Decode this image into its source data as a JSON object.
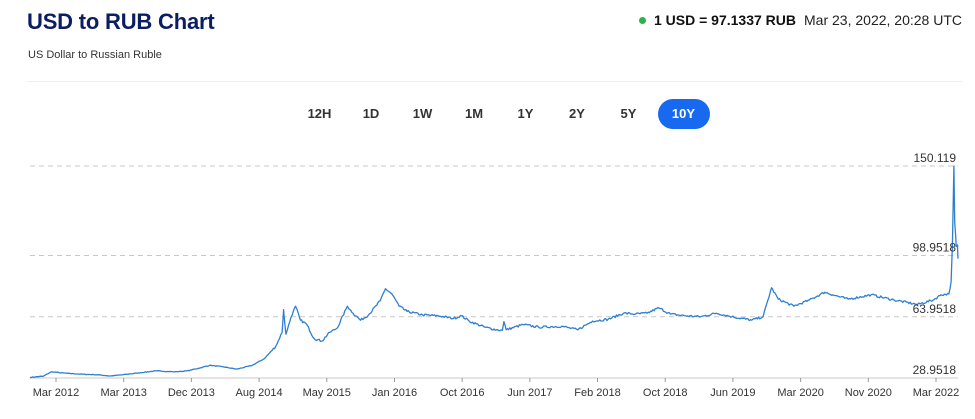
{
  "header": {
    "title": "USD to RUB Chart",
    "subtitle": "US Dollar to Russian Ruble",
    "rate": "1 USD = 97.1337 RUB",
    "timestamp": "Mar 23, 2022, 20:28 UTC",
    "status_color": "#2db24a"
  },
  "tabs": [
    {
      "label": "12H",
      "active": false
    },
    {
      "label": "1D",
      "active": false
    },
    {
      "label": "1W",
      "active": false
    },
    {
      "label": "1M",
      "active": false
    },
    {
      "label": "1Y",
      "active": false
    },
    {
      "label": "2Y",
      "active": false
    },
    {
      "label": "5Y",
      "active": false
    },
    {
      "label": "10Y",
      "active": true
    }
  ],
  "chart_data": {
    "type": "line",
    "title": "",
    "xlabel": "",
    "ylabel": "",
    "color": "#2f7fd1",
    "grid": "dashed horizontal",
    "ylim": [
      28.9518,
      150.119
    ],
    "y_ticks": [
      "150.119",
      "98.9518",
      "63.9518",
      "28.9518"
    ],
    "x_ticks": [
      "Mar 2012",
      "Mar 2013",
      "Dec 2013",
      "Aug 2014",
      "May 2015",
      "Jan 2016",
      "Oct 2016",
      "Jun 2017",
      "Feb 2018",
      "Oct 2018",
      "Jun 2019",
      "Mar 2020",
      "Nov 2020",
      "Mar 2022"
    ],
    "series": [
      {
        "values": [
          [
            "2012-03-23",
            29.3
          ],
          [
            "2012-05-15",
            30.0
          ],
          [
            "2012-06-15",
            32.5
          ],
          [
            "2012-08-01",
            31.8
          ],
          [
            "2012-10-01",
            31.2
          ],
          [
            "2012-12-15",
            30.8
          ],
          [
            "2013-02-01",
            30.1
          ],
          [
            "2013-03-23",
            30.8
          ],
          [
            "2013-06-01",
            32.0
          ],
          [
            "2013-08-01",
            33.0
          ],
          [
            "2013-10-15",
            32.5
          ],
          [
            "2013-12-01",
            33.0
          ],
          [
            "2014-01-15",
            34.5
          ],
          [
            "2014-03-01",
            36.2
          ],
          [
            "2014-04-15",
            35.5
          ],
          [
            "2014-06-15",
            34.0
          ],
          [
            "2014-08-15",
            36.2
          ],
          [
            "2014-10-01",
            40.0
          ],
          [
            "2014-11-15",
            47.0
          ],
          [
            "2014-12-10",
            55.0
          ],
          [
            "2014-12-16",
            68.0
          ],
          [
            "2014-12-25",
            54.0
          ],
          [
            "2015-01-15",
            64.0
          ],
          [
            "2015-02-01",
            70.0
          ],
          [
            "2015-02-20",
            62.0
          ],
          [
            "2015-03-15",
            60.0
          ],
          [
            "2015-04-15",
            51.5
          ],
          [
            "2015-05-15",
            50.0
          ],
          [
            "2015-06-15",
            55.0
          ],
          [
            "2015-07-15",
            57.5
          ],
          [
            "2015-08-24",
            70.0
          ],
          [
            "2015-09-15",
            66.0
          ],
          [
            "2015-10-15",
            62.0
          ],
          [
            "2015-11-15",
            65.0
          ],
          [
            "2015-12-31",
            73.0
          ],
          [
            "2016-01-21",
            80.0
          ],
          [
            "2016-02-15",
            77.0
          ],
          [
            "2016-03-15",
            70.0
          ],
          [
            "2016-04-15",
            67.0
          ],
          [
            "2016-06-15",
            65.0
          ],
          [
            "2016-08-15",
            64.5
          ],
          [
            "2016-10-15",
            63.0
          ],
          [
            "2016-11-15",
            64.5
          ],
          [
            "2016-12-15",
            61.5
          ],
          [
            "2017-02-15",
            58.0
          ],
          [
            "2017-04-01",
            56.5
          ],
          [
            "2017-04-25",
            56.2
          ],
          [
            "2017-05-01",
            61.2
          ],
          [
            "2017-05-10",
            56.5
          ],
          [
            "2017-07-15",
            59.5
          ],
          [
            "2017-09-15",
            58.0
          ],
          [
            "2017-12-15",
            58.5
          ],
          [
            "2018-02-15",
            56.5
          ],
          [
            "2018-04-15",
            61.5
          ],
          [
            "2018-06-15",
            62.5
          ],
          [
            "2018-08-15",
            66.0
          ],
          [
            "2018-10-01",
            65.5
          ],
          [
            "2018-11-15",
            66.0
          ],
          [
            "2019-01-01",
            69.0
          ],
          [
            "2019-02-15",
            65.5
          ],
          [
            "2019-04-15",
            64.5
          ],
          [
            "2019-06-15",
            64.0
          ],
          [
            "2019-08-15",
            66.0
          ],
          [
            "2019-10-15",
            64.0
          ],
          [
            "2020-01-01",
            62.0
          ],
          [
            "2020-02-15",
            64.0
          ],
          [
            "2020-03-19",
            80.5
          ],
          [
            "2020-04-15",
            74.0
          ],
          [
            "2020-06-15",
            70.0
          ],
          [
            "2020-08-15",
            73.5
          ],
          [
            "2020-10-15",
            78.0
          ],
          [
            "2020-11-15",
            76.5
          ],
          [
            "2021-01-15",
            74.0
          ],
          [
            "2021-04-15",
            76.5
          ],
          [
            "2021-07-15",
            73.5
          ],
          [
            "2021-10-15",
            71.0
          ],
          [
            "2021-12-15",
            73.5
          ],
          [
            "2022-01-15",
            76.5
          ],
          [
            "2022-02-15",
            77.0
          ],
          [
            "2022-02-24",
            84.0
          ],
          [
            "2022-03-01",
            105.0
          ],
          [
            "2022-03-07",
            150.119
          ],
          [
            "2022-03-10",
            118.0
          ],
          [
            "2022-03-14",
            110.0
          ],
          [
            "2022-03-16",
            104.0
          ],
          [
            "2022-03-18",
            104.5
          ],
          [
            "2022-03-21",
            105.0
          ],
          [
            "2022-03-22",
            101.0
          ],
          [
            "2022-03-23",
            97.1337
          ]
        ]
      }
    ]
  }
}
